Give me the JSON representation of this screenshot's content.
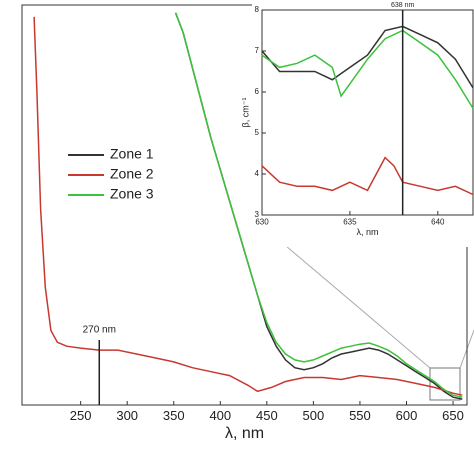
{
  "chart_data": [
    {
      "type": "line",
      "xlabel": "λ, nm",
      "xlim": [
        187,
        665
      ],
      "ylim": [
        0,
        1.02
      ],
      "xticks": [
        250,
        300,
        350,
        400,
        450,
        500,
        550,
        600,
        650
      ],
      "legend": "left",
      "annotations": [
        {
          "text": "270 nm",
          "x": 270
        }
      ],
      "series": [
        {
          "name": "Zone 1",
          "color": "#333333",
          "x": [
            352,
            360,
            370,
            380,
            390,
            400,
            410,
            420,
            430,
            440,
            450,
            460,
            470,
            480,
            490,
            500,
            510,
            520,
            530,
            540,
            550,
            560,
            570,
            580,
            590,
            600,
            610,
            620,
            630,
            640,
            650,
            660
          ],
          "values": [
            1.0,
            0.95,
            0.86,
            0.77,
            0.68,
            0.6,
            0.52,
            0.44,
            0.36,
            0.28,
            0.2,
            0.15,
            0.115,
            0.095,
            0.09,
            0.095,
            0.105,
            0.12,
            0.13,
            0.135,
            0.14,
            0.145,
            0.14,
            0.13,
            0.115,
            0.1,
            0.085,
            0.07,
            0.055,
            0.035,
            0.02,
            0.015
          ]
        },
        {
          "name": "Zone 2",
          "color": "#c8382f",
          "x": [
            200,
            203,
            207,
            212,
            218,
            225,
            235,
            250,
            270,
            290,
            310,
            330,
            350,
            370,
            390,
            410,
            430,
            440,
            455,
            470,
            490,
            510,
            530,
            550,
            570,
            590,
            610,
            630,
            650,
            660
          ],
          "values": [
            0.99,
            0.8,
            0.5,
            0.3,
            0.19,
            0.16,
            0.15,
            0.145,
            0.14,
            0.14,
            0.13,
            0.12,
            0.11,
            0.095,
            0.085,
            0.075,
            0.05,
            0.035,
            0.045,
            0.06,
            0.07,
            0.07,
            0.065,
            0.075,
            0.07,
            0.065,
            0.055,
            0.045,
            0.03,
            0.025
          ]
        },
        {
          "name": "Zone 3",
          "color": "#3cc23c",
          "x": [
            352,
            360,
            370,
            380,
            390,
            400,
            410,
            420,
            430,
            440,
            450,
            460,
            470,
            480,
            490,
            500,
            510,
            520,
            530,
            540,
            550,
            560,
            570,
            580,
            590,
            600,
            610,
            620,
            630,
            640,
            650,
            660
          ],
          "values": [
            1.0,
            0.95,
            0.86,
            0.77,
            0.68,
            0.6,
            0.52,
            0.44,
            0.36,
            0.28,
            0.21,
            0.16,
            0.13,
            0.115,
            0.11,
            0.115,
            0.125,
            0.135,
            0.145,
            0.15,
            0.155,
            0.158,
            0.15,
            0.14,
            0.125,
            0.105,
            0.09,
            0.075,
            0.06,
            0.04,
            0.025,
            0.02
          ]
        }
      ]
    },
    {
      "type": "line",
      "xlabel": "λ, nm",
      "ylabel": "β, cm⁻¹",
      "xlim": [
        630,
        642
      ],
      "ylim": [
        3,
        8
      ],
      "xticks": [
        630,
        635,
        640
      ],
      "yticks": [
        3,
        4,
        5,
        6,
        7,
        8
      ],
      "annotations": [
        {
          "text": "638 nm",
          "x": 638
        }
      ],
      "series": [
        {
          "color": "#333333",
          "x": [
            630,
            631,
            632,
            633,
            634,
            635,
            636,
            637,
            638,
            639,
            640,
            641,
            642
          ],
          "values": [
            7.0,
            6.5,
            6.5,
            6.5,
            6.3,
            6.6,
            6.9,
            7.5,
            7.6,
            7.4,
            7.2,
            6.8,
            6.1
          ]
        },
        {
          "color": "#c8382f",
          "x": [
            630,
            631,
            632,
            633,
            634,
            635,
            636,
            637,
            637.5,
            638,
            639,
            640,
            641,
            642
          ],
          "values": [
            4.2,
            3.8,
            3.7,
            3.7,
            3.6,
            3.8,
            3.6,
            4.4,
            4.2,
            3.8,
            3.7,
            3.6,
            3.7,
            3.5
          ]
        },
        {
          "color": "#3cc23c",
          "x": [
            630,
            631,
            632,
            633,
            634,
            634.5,
            635,
            636,
            637,
            638,
            639,
            640,
            641,
            642
          ],
          "values": [
            6.9,
            6.6,
            6.7,
            6.9,
            6.6,
            5.9,
            6.2,
            6.8,
            7.3,
            7.5,
            7.2,
            6.9,
            6.3,
            5.6
          ]
        }
      ]
    }
  ]
}
